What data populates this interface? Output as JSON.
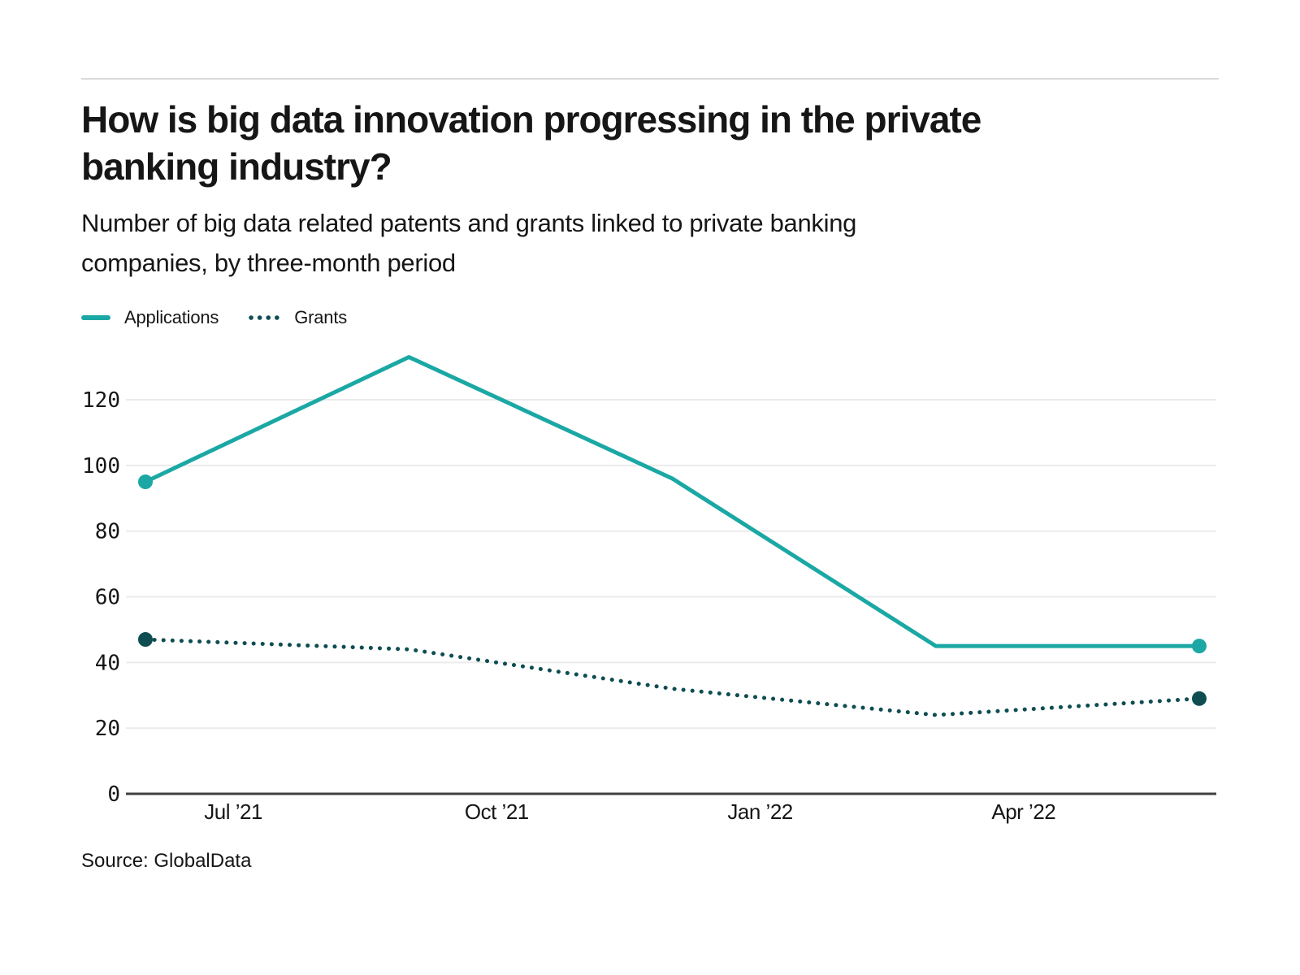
{
  "chart_data": {
    "type": "line",
    "title": "How is big data innovation progressing in the private\nbanking industry?",
    "subtitle": "Number of big data related patents and grants linked to private banking\ncompanies, by three-month period",
    "source": "Source: GlobalData",
    "legend_position": "top-left",
    "x_axis": {
      "tick_labels": [
        "Jul ’21",
        "Oct ’21",
        "Jan ’22",
        "Apr ’22"
      ],
      "tick_month_offsets": [
        1,
        4,
        7,
        10
      ],
      "months_span": 12
    },
    "y_axis": {
      "tick_values": [
        0,
        20,
        40,
        60,
        80,
        100,
        120
      ],
      "range": [
        0,
        135
      ],
      "gridlines": true
    },
    "series": [
      {
        "name": "Applications",
        "line_style": "solid",
        "color": "#1BA8A5",
        "month_offsets": [
          0,
          3,
          6,
          9,
          12
        ],
        "values": [
          95,
          133,
          96,
          45,
          45
        ]
      },
      {
        "name": "Grants",
        "line_style": "dotted",
        "color": "#0E4D52",
        "month_offsets": [
          0,
          3,
          6,
          9,
          12
        ],
        "values": [
          47,
          44,
          32,
          24,
          29
        ]
      }
    ],
    "colors": {
      "gridline": "#EBEBEB",
      "axis_line": "#404040",
      "text": "#161616",
      "divider": "#DBDBDB"
    }
  }
}
